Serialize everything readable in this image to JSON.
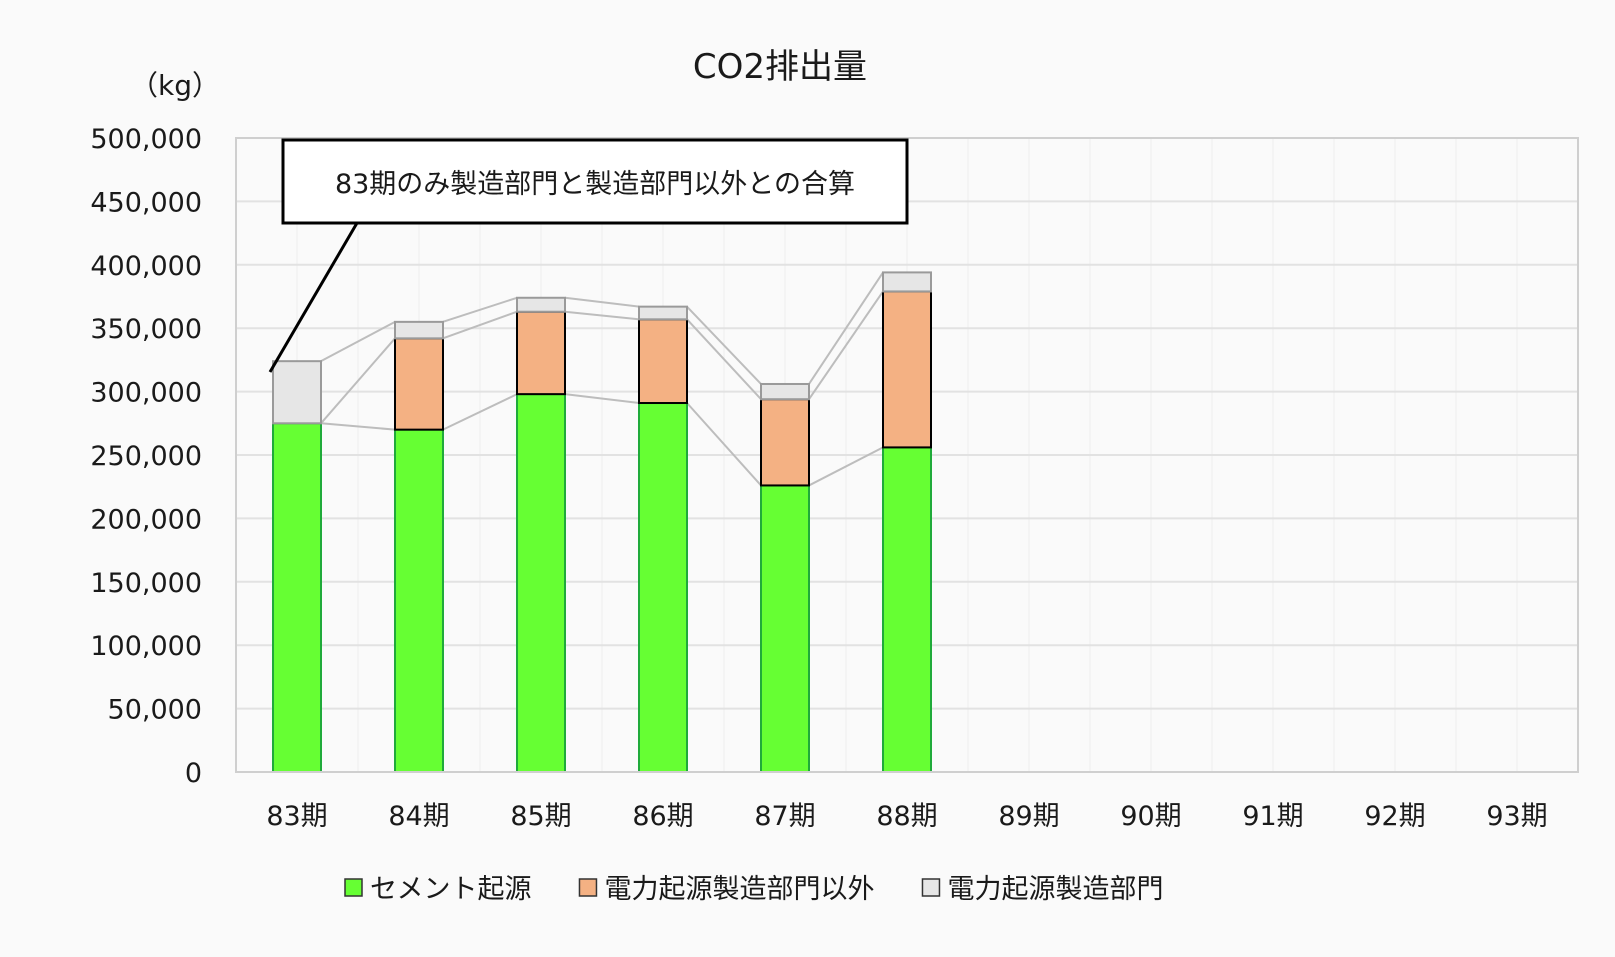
{
  "chart_data": {
    "type": "bar",
    "stacked": true,
    "title": "CO2排出量",
    "unit_label": "（kg）",
    "categories": [
      "83期",
      "84期",
      "85期",
      "86期",
      "87期",
      "88期",
      "89期",
      "90期",
      "91期",
      "92期",
      "93期"
    ],
    "series": [
      {
        "name": "セメント起源",
        "color": "#66ff33",
        "values": [
          275000,
          270000,
          298000,
          291000,
          226000,
          256000,
          null,
          null,
          null,
          null,
          null
        ]
      },
      {
        "name": "電力起源製造部門以外",
        "color": "#f4b183",
        "values": [
          0,
          72000,
          65000,
          66000,
          68000,
          123000,
          null,
          null,
          null,
          null,
          null
        ]
      },
      {
        "name": "電力起源製造部門",
        "color": "#e6e6e6",
        "values": [
          49000,
          13000,
          11000,
          10000,
          12000,
          15000,
          null,
          null,
          null,
          null,
          null
        ]
      }
    ],
    "ylim": [
      0,
      500000
    ],
    "yticks": [
      0,
      50000,
      100000,
      150000,
      200000,
      250000,
      300000,
      350000,
      400000,
      450000,
      500000
    ],
    "ytick_labels": [
      "0",
      "50,000",
      "100,000",
      "150,000",
      "200,000",
      "250,000",
      "300,000",
      "350,000",
      "400,000",
      "450,000",
      "500,000"
    ],
    "grid": true,
    "legend_position": "bottom",
    "annotation": "83期のみ製造部門と製造部門以外との合算"
  }
}
